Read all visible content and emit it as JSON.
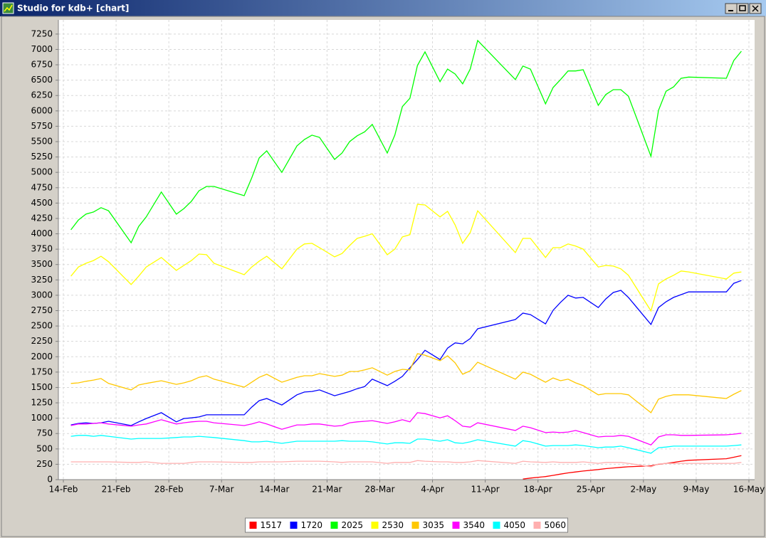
{
  "window": {
    "title": "Studio for kdb+ [chart]"
  },
  "chart_data": {
    "type": "line",
    "x": [
      "15-Feb",
      "16-Feb",
      "17-Feb",
      "18-Feb",
      "19-Feb",
      "20-Feb",
      "23-Feb",
      "24-Feb",
      "25-Feb",
      "27-Feb",
      "1-Mar",
      "2-Mar",
      "3-Mar",
      "4-Mar",
      "5-Mar",
      "6-Mar",
      "10-Mar",
      "11-Mar",
      "12-Mar",
      "13-Mar",
      "15-Mar",
      "17-Mar",
      "18-Mar",
      "19-Mar",
      "20-Mar",
      "22-Mar",
      "23-Mar",
      "24-Mar",
      "25-Mar",
      "26-Mar",
      "27-Mar",
      "29-Mar",
      "30-Mar",
      "31-Mar",
      "1-Apr",
      "2-Apr",
      "3-Apr",
      "5-Apr",
      "6-Apr",
      "7-Apr",
      "8-Apr",
      "9-Apr",
      "10-Apr",
      "15-Apr",
      "16-Apr",
      "17-Apr",
      "19-Apr",
      "20-Apr",
      "21-Apr",
      "22-Apr",
      "23-Apr",
      "24-Apr",
      "26-Apr",
      "27-Apr",
      "28-Apr",
      "29-Apr",
      "30-Apr",
      "3-May",
      "4-May",
      "5-May",
      "6-May",
      "7-May",
      "8-May",
      "13-May",
      "14-May",
      "15-May"
    ],
    "series": [
      {
        "name": "1517",
        "color": "#ff0000",
        "values": [
          null,
          null,
          null,
          null,
          null,
          null,
          null,
          null,
          null,
          null,
          null,
          null,
          null,
          null,
          null,
          null,
          null,
          null,
          null,
          null,
          null,
          null,
          null,
          null,
          null,
          null,
          null,
          null,
          null,
          null,
          null,
          null,
          null,
          null,
          null,
          null,
          null,
          null,
          null,
          null,
          null,
          null,
          null,
          null,
          10,
          25,
          50,
          70,
          90,
          110,
          125,
          140,
          165,
          180,
          190,
          200,
          210,
          225,
          250,
          265,
          280,
          300,
          315,
          340,
          365,
          390
        ]
      },
      {
        "name": "1720",
        "color": "#0000ff",
        "values": [
          890,
          915,
          925,
          915,
          925,
          950,
          880,
          940,
          995,
          1090,
          940,
          995,
          1005,
          1020,
          1055,
          1055,
          1055,
          1180,
          1285,
          1320,
          1215,
          1380,
          1425,
          1435,
          1460,
          1365,
          1400,
          1435,
          1480,
          1515,
          1635,
          1530,
          1600,
          1680,
          1820,
          1955,
          2105,
          1955,
          2140,
          2225,
          2210,
          2295,
          2455,
          2605,
          2710,
          2685,
          2535,
          2755,
          2885,
          3000,
          2955,
          2965,
          2800,
          2940,
          3045,
          3080,
          2965,
          2525,
          2800,
          2895,
          2965,
          3010,
          3055,
          3055,
          3195,
          3240
        ]
      },
      {
        "name": "2025",
        "color": "#00ff00",
        "values": [
          4065,
          4225,
          4320,
          4355,
          4425,
          4375,
          3855,
          4120,
          4275,
          4680,
          4320,
          4410,
          4530,
          4700,
          4770,
          4770,
          4620,
          4910,
          5235,
          5350,
          5000,
          5430,
          5535,
          5605,
          5570,
          5210,
          5315,
          5500,
          5595,
          5660,
          5780,
          5315,
          5605,
          6070,
          6205,
          6740,
          6960,
          6475,
          6680,
          6600,
          6440,
          6680,
          7145,
          6510,
          6730,
          6680,
          6115,
          6380,
          6510,
          6650,
          6650,
          6670,
          6090,
          6265,
          6345,
          6345,
          6240,
          5260,
          6010,
          6320,
          6390,
          6530,
          6550,
          6530,
          6820,
          6970
        ]
      },
      {
        "name": "2530",
        "color": "#ffff00",
        "values": [
          3310,
          3460,
          3520,
          3565,
          3635,
          3545,
          3175,
          3310,
          3460,
          3615,
          3405,
          3485,
          3565,
          3670,
          3660,
          3520,
          3335,
          3460,
          3555,
          3635,
          3430,
          3750,
          3835,
          3845,
          3775,
          3625,
          3680,
          3810,
          3925,
          3960,
          4000,
          3660,
          3750,
          3950,
          3985,
          4480,
          4470,
          4275,
          4365,
          4145,
          3845,
          4020,
          4375,
          3695,
          3925,
          3925,
          3615,
          3775,
          3775,
          3835,
          3800,
          3750,
          3460,
          3485,
          3475,
          3430,
          3325,
          2745,
          3185,
          3265,
          3325,
          3395,
          3380,
          3265,
          3360,
          3380
        ]
      },
      {
        "name": "3035",
        "color": "#ffc800",
        "values": [
          1565,
          1575,
          1600,
          1620,
          1645,
          1565,
          1460,
          1540,
          1565,
          1610,
          1550,
          1575,
          1610,
          1665,
          1690,
          1635,
          1505,
          1585,
          1665,
          1715,
          1585,
          1665,
          1690,
          1690,
          1725,
          1680,
          1700,
          1760,
          1760,
          1785,
          1820,
          1700,
          1760,
          1795,
          1785,
          2050,
          2025,
          1935,
          2015,
          1900,
          1715,
          1770,
          1910,
          1635,
          1750,
          1715,
          1585,
          1655,
          1610,
          1635,
          1575,
          1530,
          1380,
          1400,
          1400,
          1400,
          1380,
          1090,
          1310,
          1355,
          1380,
          1380,
          1380,
          1320,
          1390,
          1450
        ]
      },
      {
        "name": "3540",
        "color": "#ff00ff",
        "values": [
          880,
          905,
          905,
          915,
          925,
          905,
          870,
          890,
          905,
          975,
          905,
          925,
          940,
          950,
          950,
          925,
          880,
          905,
          940,
          905,
          820,
          890,
          890,
          905,
          905,
          870,
          880,
          925,
          940,
          950,
          960,
          915,
          940,
          975,
          940,
          1090,
          1075,
          1005,
          1040,
          960,
          870,
          855,
          925,
          800,
          870,
          845,
          765,
          775,
          765,
          775,
          800,
          765,
          695,
          705,
          705,
          720,
          705,
          565,
          695,
          730,
          730,
          720,
          720,
          730,
          740,
          755
        ]
      },
      {
        "name": "4050",
        "color": "#00ffff",
        "values": [
          705,
          720,
          720,
          705,
          720,
          705,
          660,
          670,
          670,
          670,
          685,
          695,
          695,
          705,
          695,
          685,
          635,
          615,
          615,
          625,
          590,
          625,
          625,
          625,
          625,
          625,
          635,
          625,
          625,
          625,
          615,
          580,
          600,
          600,
          590,
          660,
          660,
          625,
          650,
          600,
          590,
          615,
          650,
          545,
          635,
          615,
          545,
          555,
          555,
          555,
          565,
          555,
          520,
          530,
          530,
          545,
          520,
          430,
          520,
          530,
          545,
          545,
          545,
          545,
          555,
          565
        ]
      },
      {
        "name": "5060",
        "color": "#ffafaf",
        "values": [
          290,
          290,
          290,
          290,
          290,
          290,
          280,
          280,
          290,
          265,
          265,
          265,
          280,
          290,
          290,
          290,
          280,
          280,
          290,
          290,
          290,
          300,
          300,
          300,
          300,
          290,
          280,
          290,
          290,
          290,
          290,
          265,
          280,
          280,
          280,
          310,
          300,
          290,
          290,
          280,
          280,
          290,
          310,
          265,
          300,
          290,
          280,
          290,
          280,
          280,
          280,
          290,
          265,
          280,
          280,
          280,
          265,
          210,
          255,
          265,
          265,
          265,
          265,
          265,
          265,
          280
        ]
      }
    ],
    "xlim": [
      "14-Feb",
      "16-May"
    ],
    "xticks": [
      "14-Feb",
      "21-Feb",
      "28-Feb",
      "7-Mar",
      "14-Mar",
      "21-Mar",
      "28-Mar",
      "4-Apr",
      "11-Apr",
      "18-Apr",
      "25-Apr",
      "2-May",
      "9-May",
      "16-May"
    ],
    "ylim": [
      0,
      7480
    ],
    "yticks": [
      0,
      250,
      500,
      750,
      1000,
      1250,
      1500,
      1750,
      2000,
      2250,
      2500,
      2750,
      3000,
      3250,
      3500,
      3750,
      4000,
      4250,
      4500,
      4750,
      5000,
      5250,
      5500,
      5750,
      6000,
      6250,
      6500,
      6750,
      7000,
      7250
    ],
    "grid": true,
    "legend": "bottom"
  }
}
